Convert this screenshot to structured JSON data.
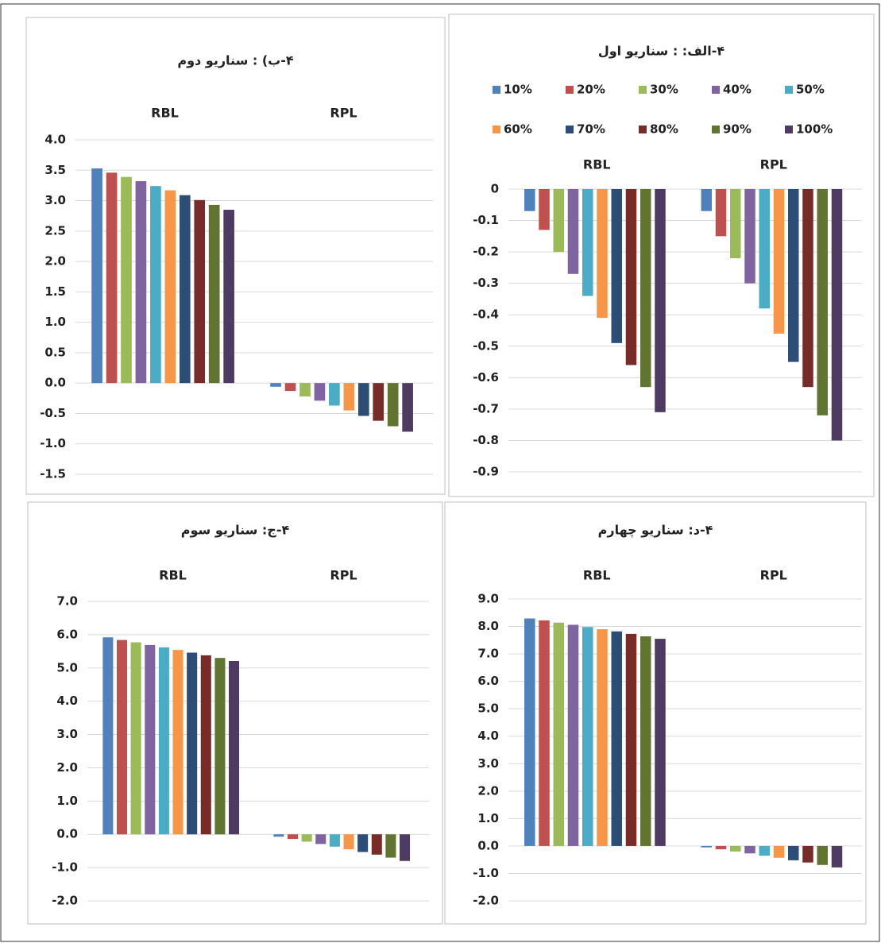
{
  "chart_data": [
    {
      "type": "bar",
      "title": "۴-الف: : سناریو اول",
      "categories": [
        "RBL",
        "RPL"
      ],
      "ylim": [
        -0.9,
        0
      ],
      "yticks": [
        0,
        -0.1,
        -0.2,
        -0.3,
        -0.4,
        -0.5,
        -0.6,
        -0.7,
        -0.8,
        -0.9
      ],
      "grid": true,
      "legend": "top",
      "series": [
        {
          "name": "10%",
          "color": "#4f81bd",
          "values": [
            -0.07,
            -0.07
          ]
        },
        {
          "name": "20%",
          "color": "#c0504d",
          "values": [
            -0.13,
            -0.15
          ]
        },
        {
          "name": "30%",
          "color": "#9bbb59",
          "values": [
            -0.2,
            -0.22
          ]
        },
        {
          "name": "40%",
          "color": "#8064a2",
          "values": [
            -0.27,
            -0.3
          ]
        },
        {
          "name": "50%",
          "color": "#4bacc6",
          "values": [
            -0.34,
            -0.38
          ]
        },
        {
          "name": "60%",
          "color": "#f79646",
          "values": [
            -0.41,
            -0.46
          ]
        },
        {
          "name": "70%",
          "color": "#2c4d75",
          "values": [
            -0.49,
            -0.55
          ]
        },
        {
          "name": "80%",
          "color": "#772c2a",
          "values": [
            -0.56,
            -0.63
          ]
        },
        {
          "name": "90%",
          "color": "#5f7530",
          "values": [
            -0.63,
            -0.72
          ]
        },
        {
          "name": "100%",
          "color": "#4d3b62",
          "values": [
            -0.71,
            -0.8
          ]
        }
      ]
    },
    {
      "type": "bar",
      "title": "۴-ب) : سناریو دوم",
      "categories": [
        "RBL",
        "RPL"
      ],
      "ylim": [
        -1.5,
        4.0
      ],
      "yticks": [
        {
          "value": 4.0,
          "label": "4.0"
        },
        {
          "value": 3.5,
          "label": "3.5"
        },
        {
          "value": 3.0,
          "label": "3.0"
        },
        {
          "value": 2.5,
          "label": "2.5"
        },
        {
          "value": 2.0,
          "label": "2.0"
        },
        {
          "value": 1.5,
          "label": "1.5"
        },
        {
          "value": 1.0,
          "label": "1.0"
        },
        {
          "value": 0.5,
          "label": "0.5"
        },
        {
          "value": 0.0,
          "label": "0.0"
        },
        {
          "value": -0.5,
          "label": "-0.5"
        },
        {
          "value": -1.0,
          "label": "-1.0"
        },
        {
          "value": -1.5,
          "label": "-1.5"
        }
      ],
      "grid": true,
      "series": [
        {
          "color": "#4f81bd",
          "values": [
            3.53,
            -0.06
          ]
        },
        {
          "color": "#c0504d",
          "values": [
            3.46,
            -0.13
          ]
        },
        {
          "color": "#9bbb59",
          "values": [
            3.39,
            -0.22
          ]
        },
        {
          "color": "#8064a2",
          "values": [
            3.32,
            -0.29
          ]
        },
        {
          "color": "#4bacc6",
          "values": [
            3.24,
            -0.37
          ]
        },
        {
          "color": "#f79646",
          "values": [
            3.17,
            -0.45
          ]
        },
        {
          "color": "#2c4d75",
          "values": [
            3.09,
            -0.54
          ]
        },
        {
          "color": "#772c2a",
          "values": [
            3.01,
            -0.62
          ]
        },
        {
          "color": "#5f7530",
          "values": [
            2.93,
            -0.71
          ]
        },
        {
          "color": "#4d3b62",
          "values": [
            2.85,
            -0.8
          ]
        }
      ]
    },
    {
      "type": "bar",
      "title": "۴-ج: سناریو سوم",
      "categories": [
        "RBL",
        "RPL"
      ],
      "ylim": [
        -2.0,
        7.0
      ],
      "yticks": [
        {
          "value": 7.0,
          "label": "7.0"
        },
        {
          "value": 6.0,
          "label": "6.0"
        },
        {
          "value": 5.0,
          "label": "5.0"
        },
        {
          "value": 4.0,
          "label": "4.0"
        },
        {
          "value": 3.0,
          "label": "3.0"
        },
        {
          "value": 2.0,
          "label": "2.0"
        },
        {
          "value": 1.0,
          "label": "1.0"
        },
        {
          "value": 0.0,
          "label": "0.0"
        },
        {
          "value": -1.0,
          "label": "-1.0"
        },
        {
          "value": -2.0,
          "label": "-2.0"
        }
      ],
      "grid": true,
      "series": [
        {
          "color": "#4f81bd",
          "values": [
            5.92,
            -0.07
          ]
        },
        {
          "color": "#c0504d",
          "values": [
            5.84,
            -0.14
          ]
        },
        {
          "color": "#9bbb59",
          "values": [
            5.77,
            -0.22
          ]
        },
        {
          "color": "#8064a2",
          "values": [
            5.69,
            -0.29
          ]
        },
        {
          "color": "#4bacc6",
          "values": [
            5.62,
            -0.37
          ]
        },
        {
          "color": "#f79646",
          "values": [
            5.54,
            -0.45
          ]
        },
        {
          "color": "#2c4d75",
          "values": [
            5.46,
            -0.53
          ]
        },
        {
          "color": "#772c2a",
          "values": [
            5.38,
            -0.61
          ]
        },
        {
          "color": "#5f7530",
          "values": [
            5.3,
            -0.7
          ]
        },
        {
          "color": "#4d3b62",
          "values": [
            5.21,
            -0.8
          ]
        }
      ]
    },
    {
      "type": "bar",
      "title": "۴-د: سناریو چهارم",
      "categories": [
        "RBL",
        "RPL"
      ],
      "ylim": [
        -2.0,
        9.0
      ],
      "yticks": [
        {
          "value": 9.0,
          "label": "9.0"
        },
        {
          "value": 8.0,
          "label": "8.0"
        },
        {
          "value": 7.0,
          "label": "7.0"
        },
        {
          "value": 6.0,
          "label": "6.0"
        },
        {
          "value": 5.0,
          "label": "5.0"
        },
        {
          "value": 4.0,
          "label": "4.0"
        },
        {
          "value": 3.0,
          "label": "3.0"
        },
        {
          "value": 2.0,
          "label": "2.0"
        },
        {
          "value": 1.0,
          "label": "1.0"
        },
        {
          "value": 0.0,
          "label": "0.0"
        },
        {
          "value": -1.0,
          "label": "-1.0"
        },
        {
          "value": -2.0,
          "label": "-2.0"
        }
      ],
      "grid": true,
      "series": [
        {
          "color": "#4f81bd",
          "values": [
            8.29,
            -0.05
          ]
        },
        {
          "color": "#c0504d",
          "values": [
            8.22,
            -0.12
          ]
        },
        {
          "color": "#9bbb59",
          "values": [
            8.14,
            -0.2
          ]
        },
        {
          "color": "#8064a2",
          "values": [
            8.06,
            -0.27
          ]
        },
        {
          "color": "#4bacc6",
          "values": [
            7.98,
            -0.35
          ]
        },
        {
          "color": "#f79646",
          "values": [
            7.9,
            -0.43
          ]
        },
        {
          "color": "#2c4d75",
          "values": [
            7.82,
            -0.52
          ]
        },
        {
          "color": "#772c2a",
          "values": [
            7.73,
            -0.6
          ]
        },
        {
          "color": "#5f7530",
          "values": [
            7.64,
            -0.69
          ]
        },
        {
          "color": "#4d3b62",
          "values": [
            7.55,
            -0.78
          ]
        }
      ]
    }
  ]
}
